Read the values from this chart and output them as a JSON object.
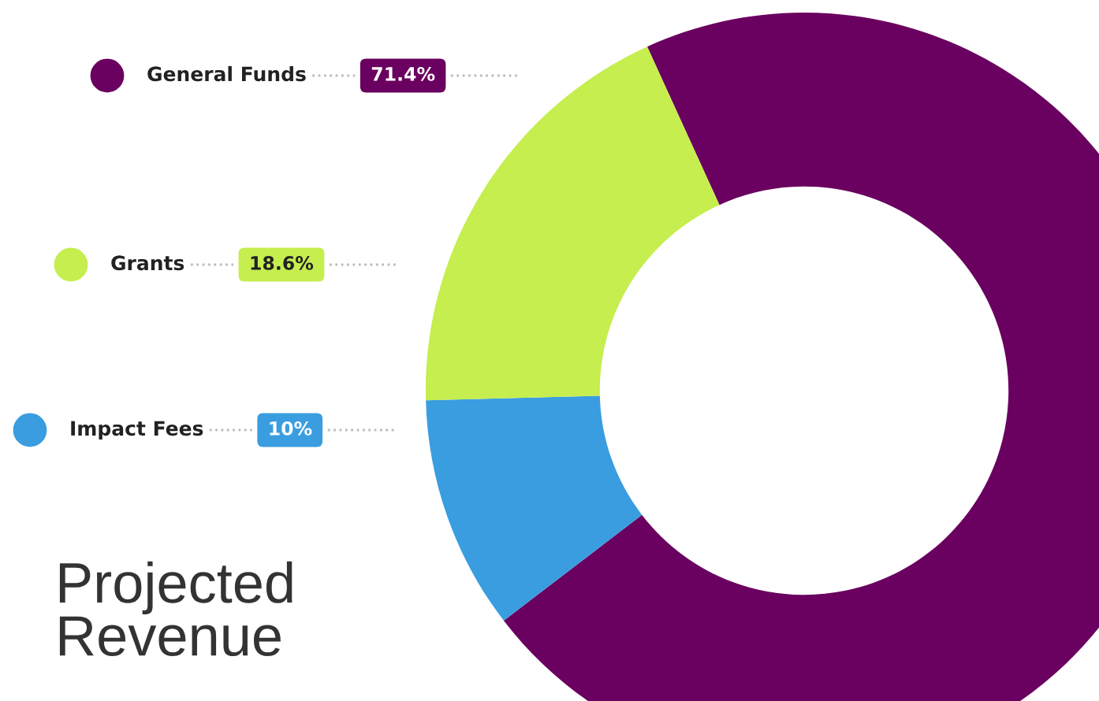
{
  "chart_data": {
    "type": "donut",
    "title": "Projected\nRevenue",
    "categories": [
      "General Funds",
      "Impact Fees",
      "Grants"
    ],
    "values": [
      71.4,
      10,
      18.6
    ],
    "colors": [
      "#6a005f",
      "#3a9de0",
      "#c5ee4e"
    ],
    "value_labels": [
      "71.4%",
      "10%",
      "18.6%"
    ],
    "legend": "left"
  }
}
